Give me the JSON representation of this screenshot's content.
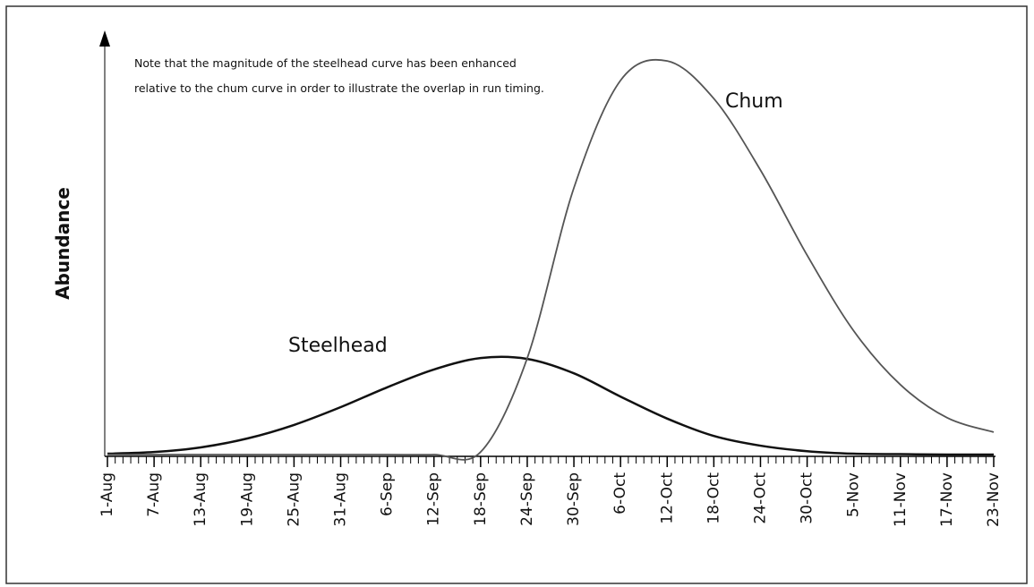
{
  "chart_data": {
    "type": "line",
    "y_label": "Abundance",
    "note": [
      "Note that the magnitude of the steelhead curve has been enhanced",
      "relative to the chum curve in order to illustrate the overlap in run timing."
    ],
    "categories": [
      "1-Aug",
      "7-Aug",
      "13-Aug",
      "19-Aug",
      "25-Aug",
      "31-Aug",
      "6-Sep",
      "12-Sep",
      "18-Sep",
      "24-Sep",
      "30-Sep",
      "6-Oct",
      "12-Oct",
      "18-Oct",
      "24-Oct",
      "30-Oct",
      "5-Nov",
      "11-Nov",
      "17-Nov",
      "23-Nov"
    ],
    "ylim": [
      0,
      100
    ],
    "series": [
      {
        "name": "Steelhead",
        "color": "#111111",
        "values": [
          0.2,
          0.6,
          1.7,
          3.8,
          7.0,
          11.2,
          15.9,
          20.1,
          22.8,
          22.6,
          19.2,
          13.7,
          8.5,
          4.4,
          2.1,
          0.8,
          0.2,
          0.1,
          0,
          0
        ]
      },
      {
        "name": "Chum",
        "color": "#555555",
        "values": [
          0,
          0,
          0,
          0,
          0,
          0,
          0,
          0,
          0.6,
          22.8,
          63,
          88.4,
          93,
          84.1,
          67.2,
          47.1,
          29.2,
          16.5,
          8.7,
          5.3
        ]
      }
    ]
  }
}
